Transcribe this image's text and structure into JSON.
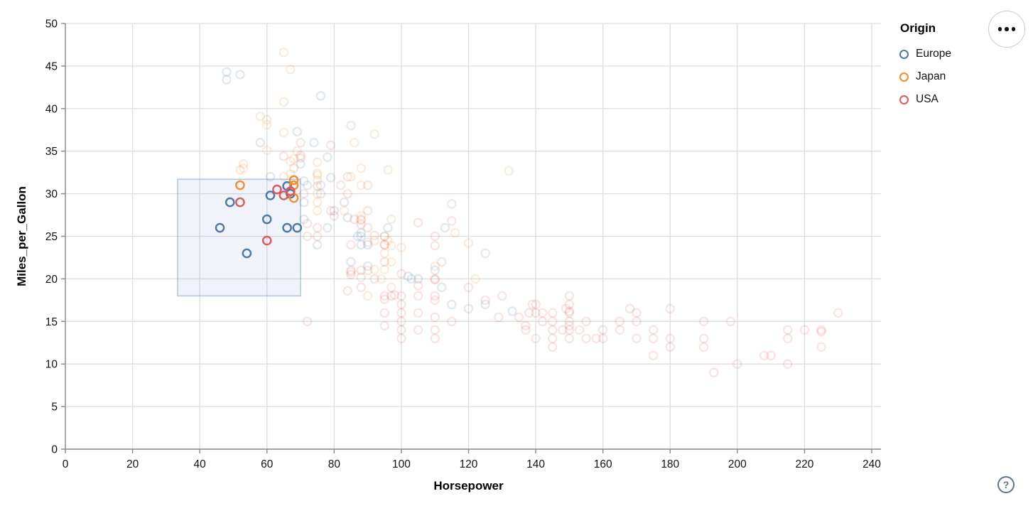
{
  "chart_data": {
    "type": "scatter",
    "xlabel": "Horsepower",
    "ylabel": "Miles_per_Gallon",
    "xlim": [
      0,
      240
    ],
    "ylim": [
      0,
      50
    ],
    "x_ticks": [
      0,
      20,
      40,
      60,
      80,
      100,
      120,
      140,
      160,
      180,
      200,
      220,
      240
    ],
    "y_ticks": [
      0,
      5,
      10,
      15,
      20,
      25,
      30,
      35,
      40,
      45,
      50
    ],
    "grid": true,
    "legend_position": "top-right",
    "legend_title": "Origin",
    "point_style": "open-circle",
    "unselected_opacity": 0.17,
    "brush": {
      "x_range": [
        33.4,
        70.0
      ],
      "y_range": [
        18.0,
        31.7
      ],
      "fill": "rgba(90,130,200,0.09)",
      "stroke": "rgba(125,160,215,0.55)"
    },
    "series": [
      {
        "name": "Europe",
        "color": "#4c78a8",
        "selected_points": [
          [
            46,
            26
          ],
          [
            49,
            29
          ],
          [
            54,
            23
          ],
          [
            60,
            27
          ],
          [
            61,
            29.8
          ],
          [
            66,
            26
          ],
          [
            69,
            26
          ],
          [
            66,
            30.9
          ],
          [
            67,
            30
          ]
        ],
        "unselected_points": [
          [
            87,
            25
          ],
          [
            90,
            24
          ],
          [
            95,
            25
          ],
          [
            113,
            26
          ],
          [
            88,
            25
          ],
          [
            76,
            41.5
          ],
          [
            48,
            44.3
          ],
          [
            48,
            43.4
          ],
          [
            52,
            44
          ],
          [
            71,
            27
          ],
          [
            76,
            30
          ],
          [
            83,
            29
          ],
          [
            75,
            24
          ],
          [
            61,
            32
          ],
          [
            78,
            26
          ],
          [
            88,
            24
          ],
          [
            103,
            20
          ],
          [
            115,
            17
          ],
          [
            112,
            19
          ],
          [
            120,
            16.5
          ],
          [
            133,
            16.2
          ],
          [
            125,
            17
          ],
          [
            110,
            21
          ],
          [
            96,
            26
          ],
          [
            72,
            31
          ],
          [
            58,
            36
          ],
          [
            71,
            29
          ],
          [
            76,
            31
          ],
          [
            80,
            28
          ],
          [
            74,
            36
          ],
          [
            71,
            31.5
          ],
          [
            70,
            33.5
          ],
          [
            79,
            31.9
          ],
          [
            88,
            25.4
          ],
          [
            85,
            22
          ],
          [
            90,
            21.5
          ],
          [
            69,
            37.3
          ],
          [
            102,
            20.3
          ],
          [
            78,
            34.3
          ],
          [
            84,
            27.2
          ],
          [
            105,
            20
          ]
        ]
      },
      {
        "name": "Japan",
        "color": "#f28e2b",
        "selected_points": [
          [
            52,
            31
          ],
          [
            68,
            31.6
          ],
          [
            68,
            31
          ],
          [
            68,
            29.5
          ]
        ],
        "unselected_points": [
          [
            95,
            24
          ],
          [
            88,
            27
          ],
          [
            88,
            27.4
          ],
          [
            69,
            35
          ],
          [
            97,
            19
          ],
          [
            95,
            25
          ],
          [
            110,
            21.5
          ],
          [
            53,
            33
          ],
          [
            53,
            33.5
          ],
          [
            75,
            29
          ],
          [
            65,
            32
          ],
          [
            97,
            27
          ],
          [
            90,
            18
          ],
          [
            95,
            23
          ],
          [
            75,
            28
          ],
          [
            96,
            24.5
          ],
          [
            97,
            22
          ],
          [
            92,
            21.1
          ],
          [
            132,
            32.7
          ],
          [
            95,
            21.1
          ],
          [
            97,
            23.9
          ],
          [
            75,
            31.6
          ],
          [
            65,
            40.8
          ],
          [
            65,
            46.6
          ],
          [
            67,
            44.6
          ],
          [
            92,
            37
          ],
          [
            60,
            38.1
          ],
          [
            65,
            37.2
          ],
          [
            75,
            32.2
          ],
          [
            75,
            32.4
          ],
          [
            75,
            33.7
          ],
          [
            67,
            32.3
          ],
          [
            58,
            39.1
          ],
          [
            68,
            34.1
          ],
          [
            60,
            35.1
          ],
          [
            67,
            33.8
          ],
          [
            116,
            25.4
          ],
          [
            120,
            24.2
          ],
          [
            100,
            23.7
          ],
          [
            122,
            20
          ],
          [
            88,
            31
          ],
          [
            83,
            28
          ],
          [
            75,
            30
          ],
          [
            94,
            20
          ],
          [
            60,
            38.7
          ],
          [
            88,
            33
          ],
          [
            85,
            32
          ],
          [
            92,
            24.5
          ],
          [
            52,
            32.8
          ],
          [
            96,
            32.8
          ],
          [
            86,
            36
          ]
        ]
      },
      {
        "name": "USA",
        "color": "#e15759",
        "selected_points": [
          [
            52,
            29
          ],
          [
            60,
            24.5
          ],
          [
            63,
            30.5
          ],
          [
            65,
            29.8
          ],
          [
            67,
            30.3
          ]
        ],
        "unselected_points": [
          [
            130,
            18
          ],
          [
            165,
            15
          ],
          [
            150,
            18
          ],
          [
            150,
            16
          ],
          [
            140,
            17
          ],
          [
            198,
            15
          ],
          [
            220,
            14
          ],
          [
            215,
            14
          ],
          [
            225,
            14
          ],
          [
            190,
            15
          ],
          [
            170,
            15
          ],
          [
            160,
            14
          ],
          [
            150,
            15
          ],
          [
            225,
            13.8
          ],
          [
            215,
            10
          ],
          [
            200,
            10
          ],
          [
            210,
            11
          ],
          [
            193,
            9
          ],
          [
            175,
            13
          ],
          [
            170,
            13
          ],
          [
            175,
            14
          ],
          [
            153,
            14
          ],
          [
            180,
            12
          ],
          [
            208,
            11
          ],
          [
            155,
            13
          ],
          [
            160,
            13
          ],
          [
            190,
            13
          ],
          [
            150,
            14
          ],
          [
            145,
            13
          ],
          [
            137,
            14
          ],
          [
            150,
            13
          ],
          [
            158,
            13
          ],
          [
            145,
            12
          ],
          [
            165,
            14
          ],
          [
            175,
            11
          ],
          [
            190,
            12
          ],
          [
            170,
            16
          ],
          [
            150,
            16.2
          ],
          [
            145,
            14
          ],
          [
            137,
            14.5
          ],
          [
            150,
            14.5
          ],
          [
            140,
            13
          ],
          [
            148,
            14
          ],
          [
            230,
            16
          ],
          [
            225,
            12
          ],
          [
            180,
            13
          ],
          [
            145,
            15
          ],
          [
            215,
            13
          ],
          [
            142,
            15
          ],
          [
            129,
            15.5
          ],
          [
            138,
            16
          ],
          [
            135,
            15.5
          ],
          [
            155,
            15
          ],
          [
            142,
            16
          ],
          [
            125,
            17.5
          ],
          [
            150,
            17
          ],
          [
            149,
            16.5
          ],
          [
            145,
            16
          ],
          [
            168,
            16.5
          ],
          [
            180,
            16.5
          ],
          [
            139,
            17
          ],
          [
            140,
            16
          ],
          [
            125,
            23
          ],
          [
            95,
            24
          ],
          [
            95,
            22
          ],
          [
            97,
            18
          ],
          [
            85,
            21
          ],
          [
            90,
            21
          ],
          [
            90,
            28
          ],
          [
            105,
            16
          ],
          [
            100,
            17
          ],
          [
            88,
            19
          ],
          [
            100,
            18
          ],
          [
            100,
            16
          ],
          [
            95,
            18
          ],
          [
            105,
            18
          ],
          [
            88,
            21
          ],
          [
            85,
            24
          ],
          [
            98,
            18.1
          ],
          [
            95,
            17.6
          ],
          [
            90,
            24.3
          ],
          [
            85,
            20.8
          ],
          [
            110,
            19.9
          ],
          [
            110,
            20
          ],
          [
            105,
            19.2
          ],
          [
            120,
            19
          ],
          [
            115,
            15
          ],
          [
            110,
            18
          ],
          [
            88,
            20.2
          ],
          [
            85,
            20.5
          ],
          [
            84,
            18.6
          ],
          [
            110,
            17.5
          ],
          [
            115,
            28.8
          ],
          [
            115,
            26.8
          ],
          [
            90,
            26
          ],
          [
            92,
            20
          ],
          [
            112,
            22
          ],
          [
            110,
            23.9
          ],
          [
            105,
            26.6
          ],
          [
            110,
            25
          ],
          [
            100,
            20.6
          ],
          [
            100,
            13
          ],
          [
            100,
            14
          ],
          [
            100,
            15
          ],
          [
            110,
            13
          ],
          [
            110,
            14
          ],
          [
            110,
            15.5
          ],
          [
            105,
            14
          ],
          [
            95,
            16
          ],
          [
            95,
            14.5
          ],
          [
            75,
            25
          ],
          [
            72,
            25
          ],
          [
            71,
            30
          ],
          [
            70,
            34.2
          ],
          [
            70,
            34.5
          ],
          [
            75,
            30.9
          ],
          [
            65,
            34.4
          ],
          [
            85,
            38
          ],
          [
            84,
            30
          ],
          [
            84,
            32
          ],
          [
            79,
            28
          ],
          [
            82,
            31
          ],
          [
            80,
            27.4
          ],
          [
            70,
            36
          ],
          [
            88,
            26.4
          ],
          [
            86,
            27
          ],
          [
            90,
            31
          ],
          [
            88,
            26.9
          ],
          [
            92,
            25.1
          ],
          [
            75,
            26
          ],
          [
            72,
            26.5
          ],
          [
            68,
            33
          ],
          [
            72,
            15
          ],
          [
            79,
            35.7
          ]
        ]
      }
    ]
  },
  "controls": {
    "menu_button": "options-menu",
    "help_label": "?"
  }
}
